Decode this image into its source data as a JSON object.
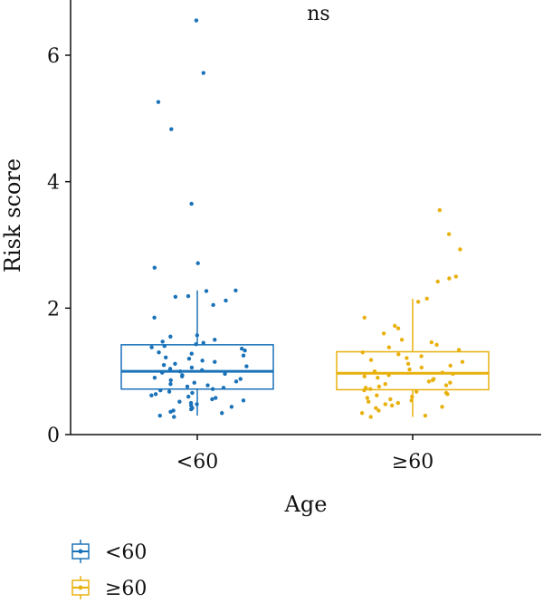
{
  "chart_data": {
    "type": "box",
    "xlabel": "Age",
    "ylabel": "Risk score",
    "annotation": "ns",
    "categories": [
      "<60",
      "≥60"
    ],
    "ylim": [
      0,
      6.8
    ],
    "yticks": [
      "0",
      "2",
      "4",
      "6"
    ],
    "grid": false,
    "legend_position": "bottom-left",
    "series": [
      {
        "name": "<60",
        "color": "#1a72b8",
        "box": {
          "q1": 0.72,
          "median": 1.0,
          "q3": 1.42,
          "whisker_low": 0.3,
          "whisker_high": 2.28
        },
        "points": [
          6.55,
          5.72,
          5.26,
          4.83,
          3.65,
          2.71,
          2.64,
          2.28,
          2.27,
          2.19,
          2.18,
          2.12,
          2.05,
          1.85,
          1.57,
          1.55,
          1.5,
          1.47,
          1.45,
          1.43,
          1.4,
          1.38,
          1.36,
          1.33,
          1.3,
          1.28,
          1.25,
          1.22,
          1.2,
          1.17,
          1.15,
          1.12,
          1.1,
          1.08,
          1.06,
          1.04,
          1.02,
          1.0,
          0.98,
          0.96,
          0.94,
          0.92,
          0.9,
          0.88,
          0.86,
          0.84,
          0.82,
          0.8,
          0.78,
          0.76,
          0.74,
          0.72,
          0.7,
          0.68,
          0.66,
          0.64,
          0.62,
          0.6,
          0.58,
          0.56,
          0.54,
          0.52,
          0.5,
          0.48,
          0.46,
          0.44,
          0.42,
          0.4,
          0.38,
          0.36,
          0.34,
          0.3,
          0.28
        ]
      },
      {
        "name": "≥60",
        "color": "#e8b10e",
        "box": {
          "q1": 0.71,
          "median": 0.97,
          "q3": 1.31,
          "whisker_low": 0.28,
          "whisker_high": 2.15
        },
        "points": [
          3.55,
          3.17,
          2.93,
          2.5,
          2.47,
          2.42,
          2.15,
          2.1,
          1.85,
          1.72,
          1.68,
          1.6,
          1.5,
          1.46,
          1.42,
          1.38,
          1.34,
          1.3,
          1.27,
          1.24,
          1.21,
          1.18,
          1.15,
          1.12,
          1.09,
          1.06,
          1.03,
          1.0,
          0.98,
          0.96,
          0.94,
          0.92,
          0.9,
          0.88,
          0.86,
          0.84,
          0.82,
          0.8,
          0.78,
          0.76,
          0.74,
          0.72,
          0.7,
          0.68,
          0.66,
          0.64,
          0.62,
          0.6,
          0.58,
          0.56,
          0.54,
          0.52,
          0.5,
          0.48,
          0.46,
          0.44,
          0.42,
          0.38,
          0.34,
          0.3,
          0.28
        ]
      }
    ]
  }
}
